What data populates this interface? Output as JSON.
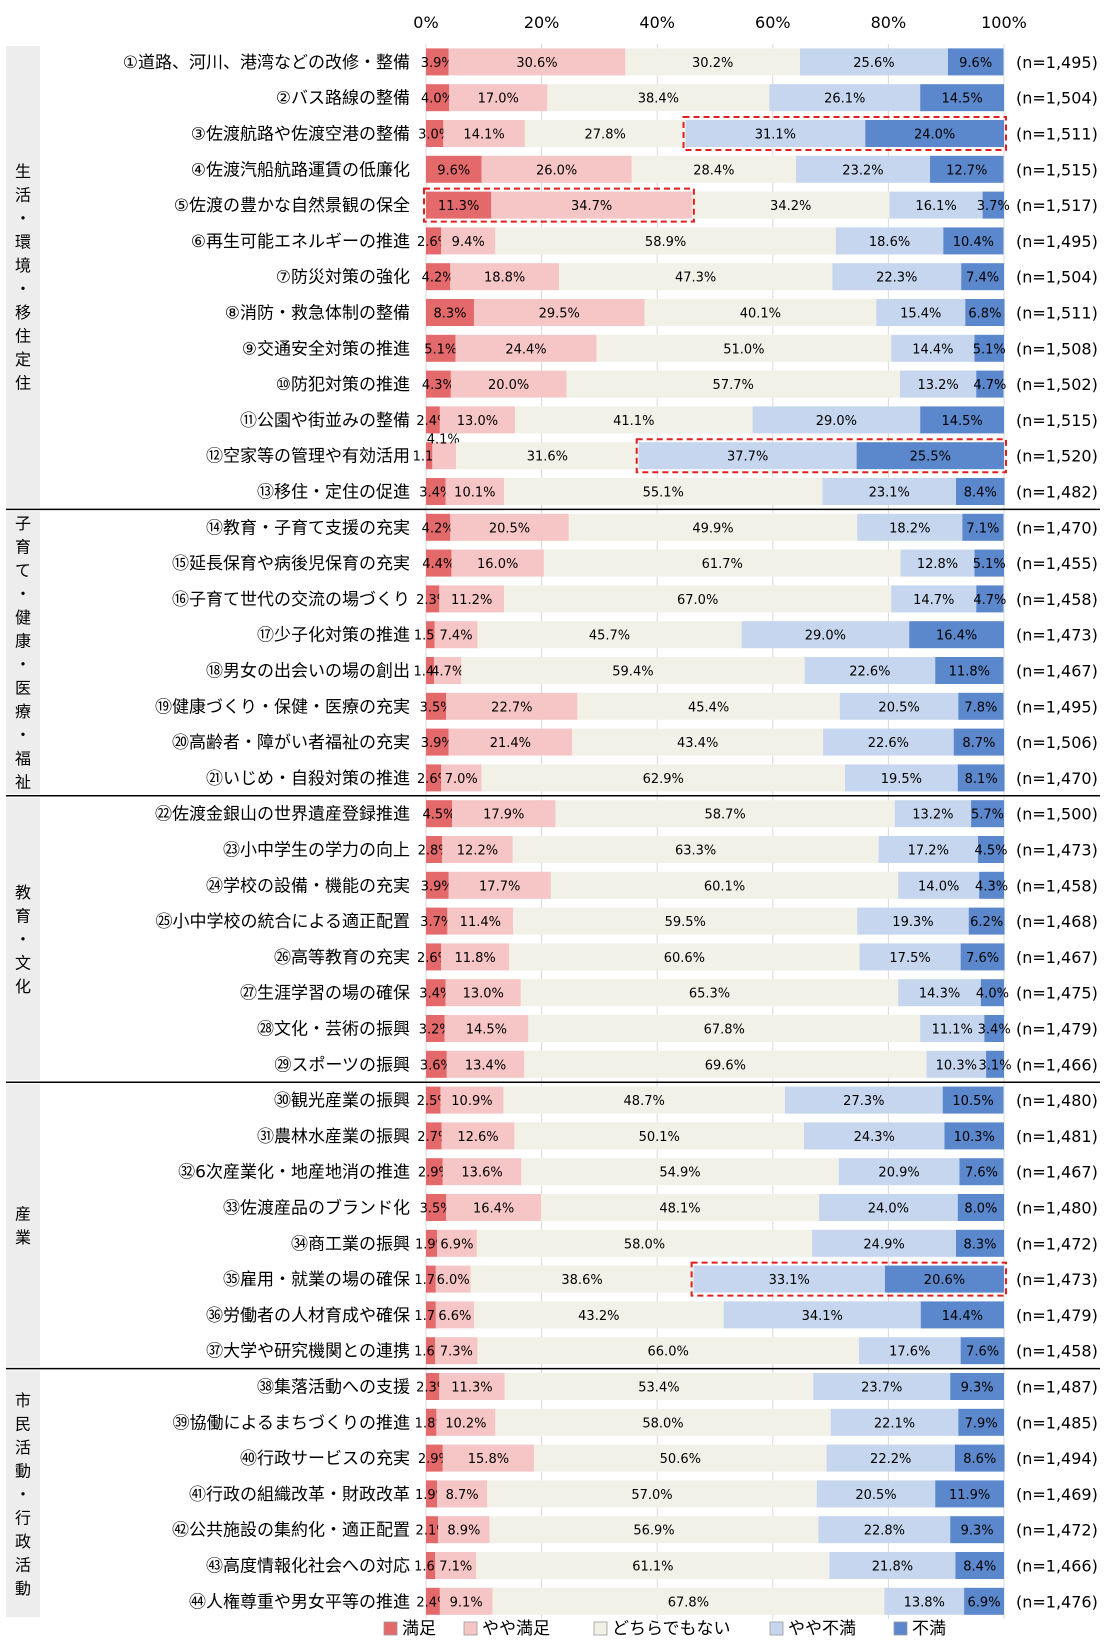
{
  "chart_data": {
    "type": "bar",
    "stacked": true,
    "orientation": "horizontal",
    "percent_stacked": true,
    "x_ticks": [
      "0%",
      "20%",
      "40%",
      "60%",
      "80%",
      "100%"
    ],
    "xlim": [
      0,
      100
    ],
    "series": [
      {
        "name": "満足",
        "color": "#e3696b"
      },
      {
        "name": "やや満足",
        "color": "#f6c5c5"
      },
      {
        "name": "どちらでもない",
        "color": "#f2f1e8"
      },
      {
        "name": "やや不満",
        "color": "#c6d6ee"
      },
      {
        "name": "不満",
        "color": "#5b87cc"
      }
    ],
    "groups": [
      {
        "label": "生活・環境・移住定住",
        "start": 0,
        "end": 12
      },
      {
        "label": "子育て・健康・医療・福祉",
        "start": 13,
        "end": 20
      },
      {
        "label": "教育・文化",
        "start": 21,
        "end": 28
      },
      {
        "label": "産業",
        "start": 29,
        "end": 36
      },
      {
        "label": "市民活動・行政活動",
        "start": 37,
        "end": 43
      }
    ],
    "rows": [
      {
        "label": "①道路、河川、港湾などの改修・整備",
        "values": [
          3.9,
          30.6,
          30.2,
          25.6,
          9.6
        ],
        "n": "(n=1,495)"
      },
      {
        "label": "②バス路線の整備",
        "values": [
          4.0,
          17.0,
          38.4,
          26.1,
          14.5
        ],
        "n": "(n=1,504)"
      },
      {
        "label": "③佐渡航路や佐渡空港の整備",
        "values": [
          3.0,
          14.1,
          27.8,
          31.1,
          24.0
        ],
        "n": "(n=1,511)",
        "highlight": "dissatisfied"
      },
      {
        "label": "④佐渡汽船航路運賃の低廉化",
        "values": [
          9.6,
          26.0,
          28.4,
          23.2,
          12.7
        ],
        "n": "(n=1,515)"
      },
      {
        "label": "⑤佐渡の豊かな自然景観の保全",
        "values": [
          11.3,
          34.7,
          34.2,
          16.1,
          3.7
        ],
        "n": "(n=1,517)",
        "highlight": "satisfied"
      },
      {
        "label": "⑥再生可能エネルギーの推進",
        "values": [
          2.6,
          9.4,
          58.9,
          18.6,
          10.4
        ],
        "n": "(n=1,495)"
      },
      {
        "label": "⑦防災対策の強化",
        "values": [
          4.2,
          18.8,
          47.3,
          22.3,
          7.4
        ],
        "n": "(n=1,504)"
      },
      {
        "label": "⑧消防・救急体制の整備",
        "values": [
          8.3,
          29.5,
          40.1,
          15.4,
          6.8
        ],
        "n": "(n=1,511)"
      },
      {
        "label": "⑨交通安全対策の推進",
        "values": [
          5.1,
          24.4,
          51.0,
          14.4,
          5.1
        ],
        "n": "(n=1,508)"
      },
      {
        "label": "⑩防犯対策の推進",
        "values": [
          4.3,
          20.0,
          57.7,
          13.2,
          4.7
        ],
        "n": "(n=1,502)"
      },
      {
        "label": "⑪公園や街並みの整備",
        "values": [
          2.4,
          13.0,
          41.1,
          29.0,
          14.5
        ],
        "n": "(n=1,515)"
      },
      {
        "label": "⑫空家等の管理や有効活用",
        "values": [
          1.1,
          4.1,
          31.6,
          37.7,
          25.5
        ],
        "n": "(n=1,520)",
        "highlight": "dissatisfied"
      },
      {
        "label": "⑬移住・定住の促進",
        "values": [
          3.4,
          10.1,
          55.1,
          23.1,
          8.4
        ],
        "n": "(n=1,482)"
      },
      {
        "label": "⑭教育・子育て支援の充実",
        "values": [
          4.2,
          20.5,
          49.9,
          18.2,
          7.1
        ],
        "n": "(n=1,470)"
      },
      {
        "label": "⑮延長保育や病後児保育の充実",
        "values": [
          4.4,
          16.0,
          61.7,
          12.8,
          5.1
        ],
        "n": "(n=1,455)"
      },
      {
        "label": "⑯子育て世代の交流の場づくり",
        "values": [
          2.3,
          11.2,
          67.0,
          14.7,
          4.7
        ],
        "n": "(n=1,458)"
      },
      {
        "label": "⑰少子化対策の推進",
        "values": [
          1.5,
          7.4,
          45.7,
          29.0,
          16.4
        ],
        "n": "(n=1,473)"
      },
      {
        "label": "⑱男女の出会いの場の創出",
        "values": [
          1.4,
          4.7,
          59.4,
          22.6,
          11.8
        ],
        "n": "(n=1,467)"
      },
      {
        "label": "⑲健康づくり・保健・医療の充実",
        "values": [
          3.5,
          22.7,
          45.4,
          20.5,
          7.8
        ],
        "n": "(n=1,495)"
      },
      {
        "label": "⑳高齢者・障がい者福祉の充実",
        "values": [
          3.9,
          21.4,
          43.4,
          22.6,
          8.7
        ],
        "n": "(n=1,506)"
      },
      {
        "label": "㉑いじめ・自殺対策の推進",
        "values": [
          2.6,
          7.0,
          62.9,
          19.5,
          8.1
        ],
        "n": "(n=1,470)"
      },
      {
        "label": "㉒佐渡金銀山の世界遺産登録推進",
        "values": [
          4.5,
          17.9,
          58.7,
          13.2,
          5.7
        ],
        "n": "(n=1,500)"
      },
      {
        "label": "㉓小中学生の学力の向上",
        "values": [
          2.8,
          12.2,
          63.3,
          17.2,
          4.5
        ],
        "n": "(n=1,473)"
      },
      {
        "label": "㉔学校の設備・機能の充実",
        "values": [
          3.9,
          17.7,
          60.1,
          14.0,
          4.3
        ],
        "n": "(n=1,458)"
      },
      {
        "label": "㉕小中学校の統合による適正配置",
        "values": [
          3.7,
          11.4,
          59.5,
          19.3,
          6.2
        ],
        "n": "(n=1,468)"
      },
      {
        "label": "㉖高等教育の充実",
        "values": [
          2.6,
          11.8,
          60.6,
          17.5,
          7.6
        ],
        "n": "(n=1,467)"
      },
      {
        "label": "㉗生涯学習の場の確保",
        "values": [
          3.4,
          13.0,
          65.3,
          14.3,
          4.0
        ],
        "n": "(n=1,475)"
      },
      {
        "label": "㉘文化・芸術の振興",
        "values": [
          3.2,
          14.5,
          67.8,
          11.1,
          3.4
        ],
        "n": "(n=1,479)"
      },
      {
        "label": "㉙スポーツの振興",
        "values": [
          3.6,
          13.4,
          69.6,
          10.3,
          3.1
        ],
        "n": "(n=1,466)"
      },
      {
        "label": "㉚観光産業の振興",
        "values": [
          2.5,
          10.9,
          48.7,
          27.3,
          10.5
        ],
        "n": "(n=1,480)"
      },
      {
        "label": "㉛農林水産業の振興",
        "values": [
          2.7,
          12.6,
          50.1,
          24.3,
          10.3
        ],
        "n": "(n=1,481)"
      },
      {
        "label": "㉜6次産業化・地産地消の推進",
        "values": [
          2.9,
          13.6,
          54.9,
          20.9,
          7.6
        ],
        "n": "(n=1,467)"
      },
      {
        "label": "㉝佐渡産品のブランド化",
        "values": [
          3.5,
          16.4,
          48.1,
          24.0,
          8.0
        ],
        "n": "(n=1,480)"
      },
      {
        "label": "㉞商工業の振興",
        "values": [
          1.9,
          6.9,
          58.0,
          24.9,
          8.3
        ],
        "n": "(n=1,472)"
      },
      {
        "label": "㉟雇用・就業の場の確保",
        "values": [
          1.7,
          6.0,
          38.6,
          33.1,
          20.6
        ],
        "n": "(n=1,473)",
        "highlight": "dissatisfied"
      },
      {
        "label": "㊱労働者の人材育成や確保",
        "values": [
          1.7,
          6.6,
          43.2,
          34.1,
          14.4
        ],
        "n": "(n=1,479)"
      },
      {
        "label": "㊲大学や研究機関との連携",
        "values": [
          1.6,
          7.3,
          66.0,
          17.6,
          7.6
        ],
        "n": "(n=1,458)"
      },
      {
        "label": "㊳集落活動への支援",
        "values": [
          2.3,
          11.3,
          53.4,
          23.7,
          9.3
        ],
        "n": "(n=1,487)"
      },
      {
        "label": "㊴協働によるまちづくりの推進",
        "values": [
          1.8,
          10.2,
          58.0,
          22.1,
          7.9
        ],
        "n": "(n=1,485)"
      },
      {
        "label": "㊵行政サービスの充実",
        "values": [
          2.9,
          15.8,
          50.6,
          22.2,
          8.6
        ],
        "n": "(n=1,494)"
      },
      {
        "label": "㊶行政の組織改革・財政改革",
        "values": [
          1.9,
          8.7,
          57.0,
          20.5,
          11.9
        ],
        "n": "(n=1,469)"
      },
      {
        "label": "㊷公共施設の集約化・適正配置",
        "values": [
          2.1,
          8.9,
          56.9,
          22.8,
          9.3
        ],
        "n": "(n=1,472)"
      },
      {
        "label": "㊸高度情報化社会への対応",
        "values": [
          1.6,
          7.1,
          61.1,
          21.8,
          8.4
        ],
        "n": "(n=1,466)"
      },
      {
        "label": "㊹人権尊重や男女平等の推進",
        "values": [
          2.4,
          9.1,
          67.8,
          13.8,
          6.9
        ],
        "n": "(n=1,476)"
      }
    ]
  }
}
